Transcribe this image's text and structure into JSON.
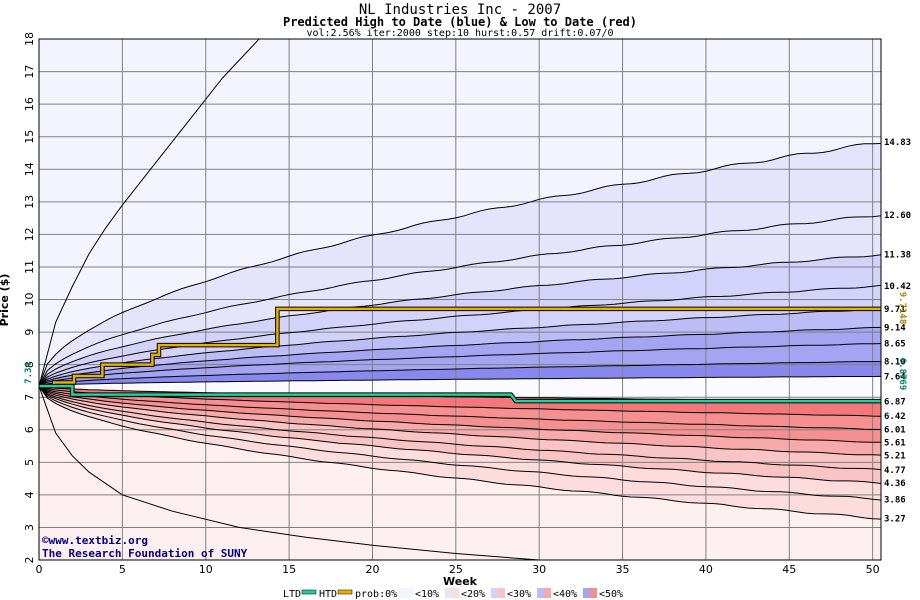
{
  "header": {
    "title": "NL Industries Inc - 2007",
    "subtitle": "Predicted High to Date (blue) &  Low to Date (red)",
    "params": "vol:2.56% iter:2000 step:10 hurst:0.57 drift:0.07/0"
  },
  "credit": {
    "line1": "©www.textbiz.org",
    "line2": "The Research Foundation of SUNY"
  },
  "legend": {
    "ltd": "LTD",
    "htd": "HTD",
    "prob": "prob:0%",
    "b10": "<10%",
    "b20": "<20%",
    "b30": "<30%",
    "b40": "<40%",
    "b50": "<50%"
  },
  "colors": {
    "blue_bands": [
      "#f4f4fe",
      "#e4e4fc",
      "#d2d2fa",
      "#bcbcf6",
      "#a4a4f2",
      "#8888ee"
    ],
    "red_bands": [
      "#fef0f0",
      "#fcdcdc",
      "#fac4c4",
      "#f8aaaa",
      "#f69090",
      "#f47878"
    ],
    "htd_line": "#e8b000",
    "ltd_line": "#20d0a0",
    "grid": "#808080",
    "credit": "#000080",
    "ltd_label": "#008060",
    "htd_label": "#b08000"
  },
  "chart_data": {
    "type": "line",
    "title": "NL Industries Inc - 2007",
    "xlabel": "Week",
    "ylabel": "Price ($)",
    "xlim": [
      0,
      50.5
    ],
    "ylim": [
      2,
      18
    ],
    "x_ticks": [
      0,
      5,
      10,
      15,
      20,
      25,
      30,
      35,
      40,
      45,
      50
    ],
    "y_ticks": [
      2,
      3,
      4,
      5,
      6,
      7,
      8,
      9,
      10,
      11,
      12,
      13,
      14,
      15,
      16,
      17,
      18
    ],
    "start_price": "7.34",
    "start_value": 7.34,
    "upper_band_ends": [
      14.83,
      12.6,
      11.38,
      10.42,
      9.71,
      9.14,
      8.65,
      8.1,
      7.64
    ],
    "upper_band_labels": [
      "14.83",
      "12.60",
      "11.38",
      "10.42",
      "9.71",
      "9.14",
      "8.65",
      "8.10",
      "7.64"
    ],
    "lower_band_ends": [
      6.87,
      6.42,
      6.01,
      5.61,
      5.21,
      4.77,
      4.36,
      3.86,
      3.27
    ],
    "lower_band_labels": [
      "6.87",
      "6.42",
      "6.01",
      "5.61",
      "5.21",
      "4.77",
      "4.36",
      "3.86",
      "3.27"
    ],
    "outer_upper": {
      "x": [
        0,
        1,
        2,
        3,
        4,
        5,
        7,
        9,
        11,
        13.2
      ],
      "y": [
        7.34,
        9.3,
        10.4,
        11.4,
        12.2,
        12.9,
        14.2,
        15.5,
        16.8,
        18
      ]
    },
    "outer_lower": {
      "x": [
        0,
        1,
        2,
        3,
        5,
        8,
        12,
        16,
        20,
        25,
        30
      ],
      "y": [
        7.34,
        5.9,
        5.2,
        4.7,
        4.0,
        3.5,
        3.0,
        2.7,
        2.45,
        2.2,
        2.0
      ]
    },
    "htd_series": {
      "name": "HTD",
      "label": "9.7148",
      "x": [
        0,
        0.9,
        0.9,
        2.1,
        2.1,
        3.8,
        3.8,
        6.8,
        6.8,
        7.2,
        7.2,
        14.3,
        14.3,
        50.5
      ],
      "y": [
        7.34,
        7.34,
        7.45,
        7.45,
        7.65,
        7.65,
        8.0,
        8.0,
        8.3,
        8.3,
        8.6,
        8.6,
        9.71,
        9.71
      ]
    },
    "ltd_series": {
      "name": "LTD",
      "label": "6.8769",
      "x": [
        0,
        2.0,
        2.0,
        28.3,
        28.6,
        50.5
      ],
      "y": [
        7.34,
        7.34,
        7.08,
        7.08,
        6.88,
        6.88
      ]
    }
  }
}
